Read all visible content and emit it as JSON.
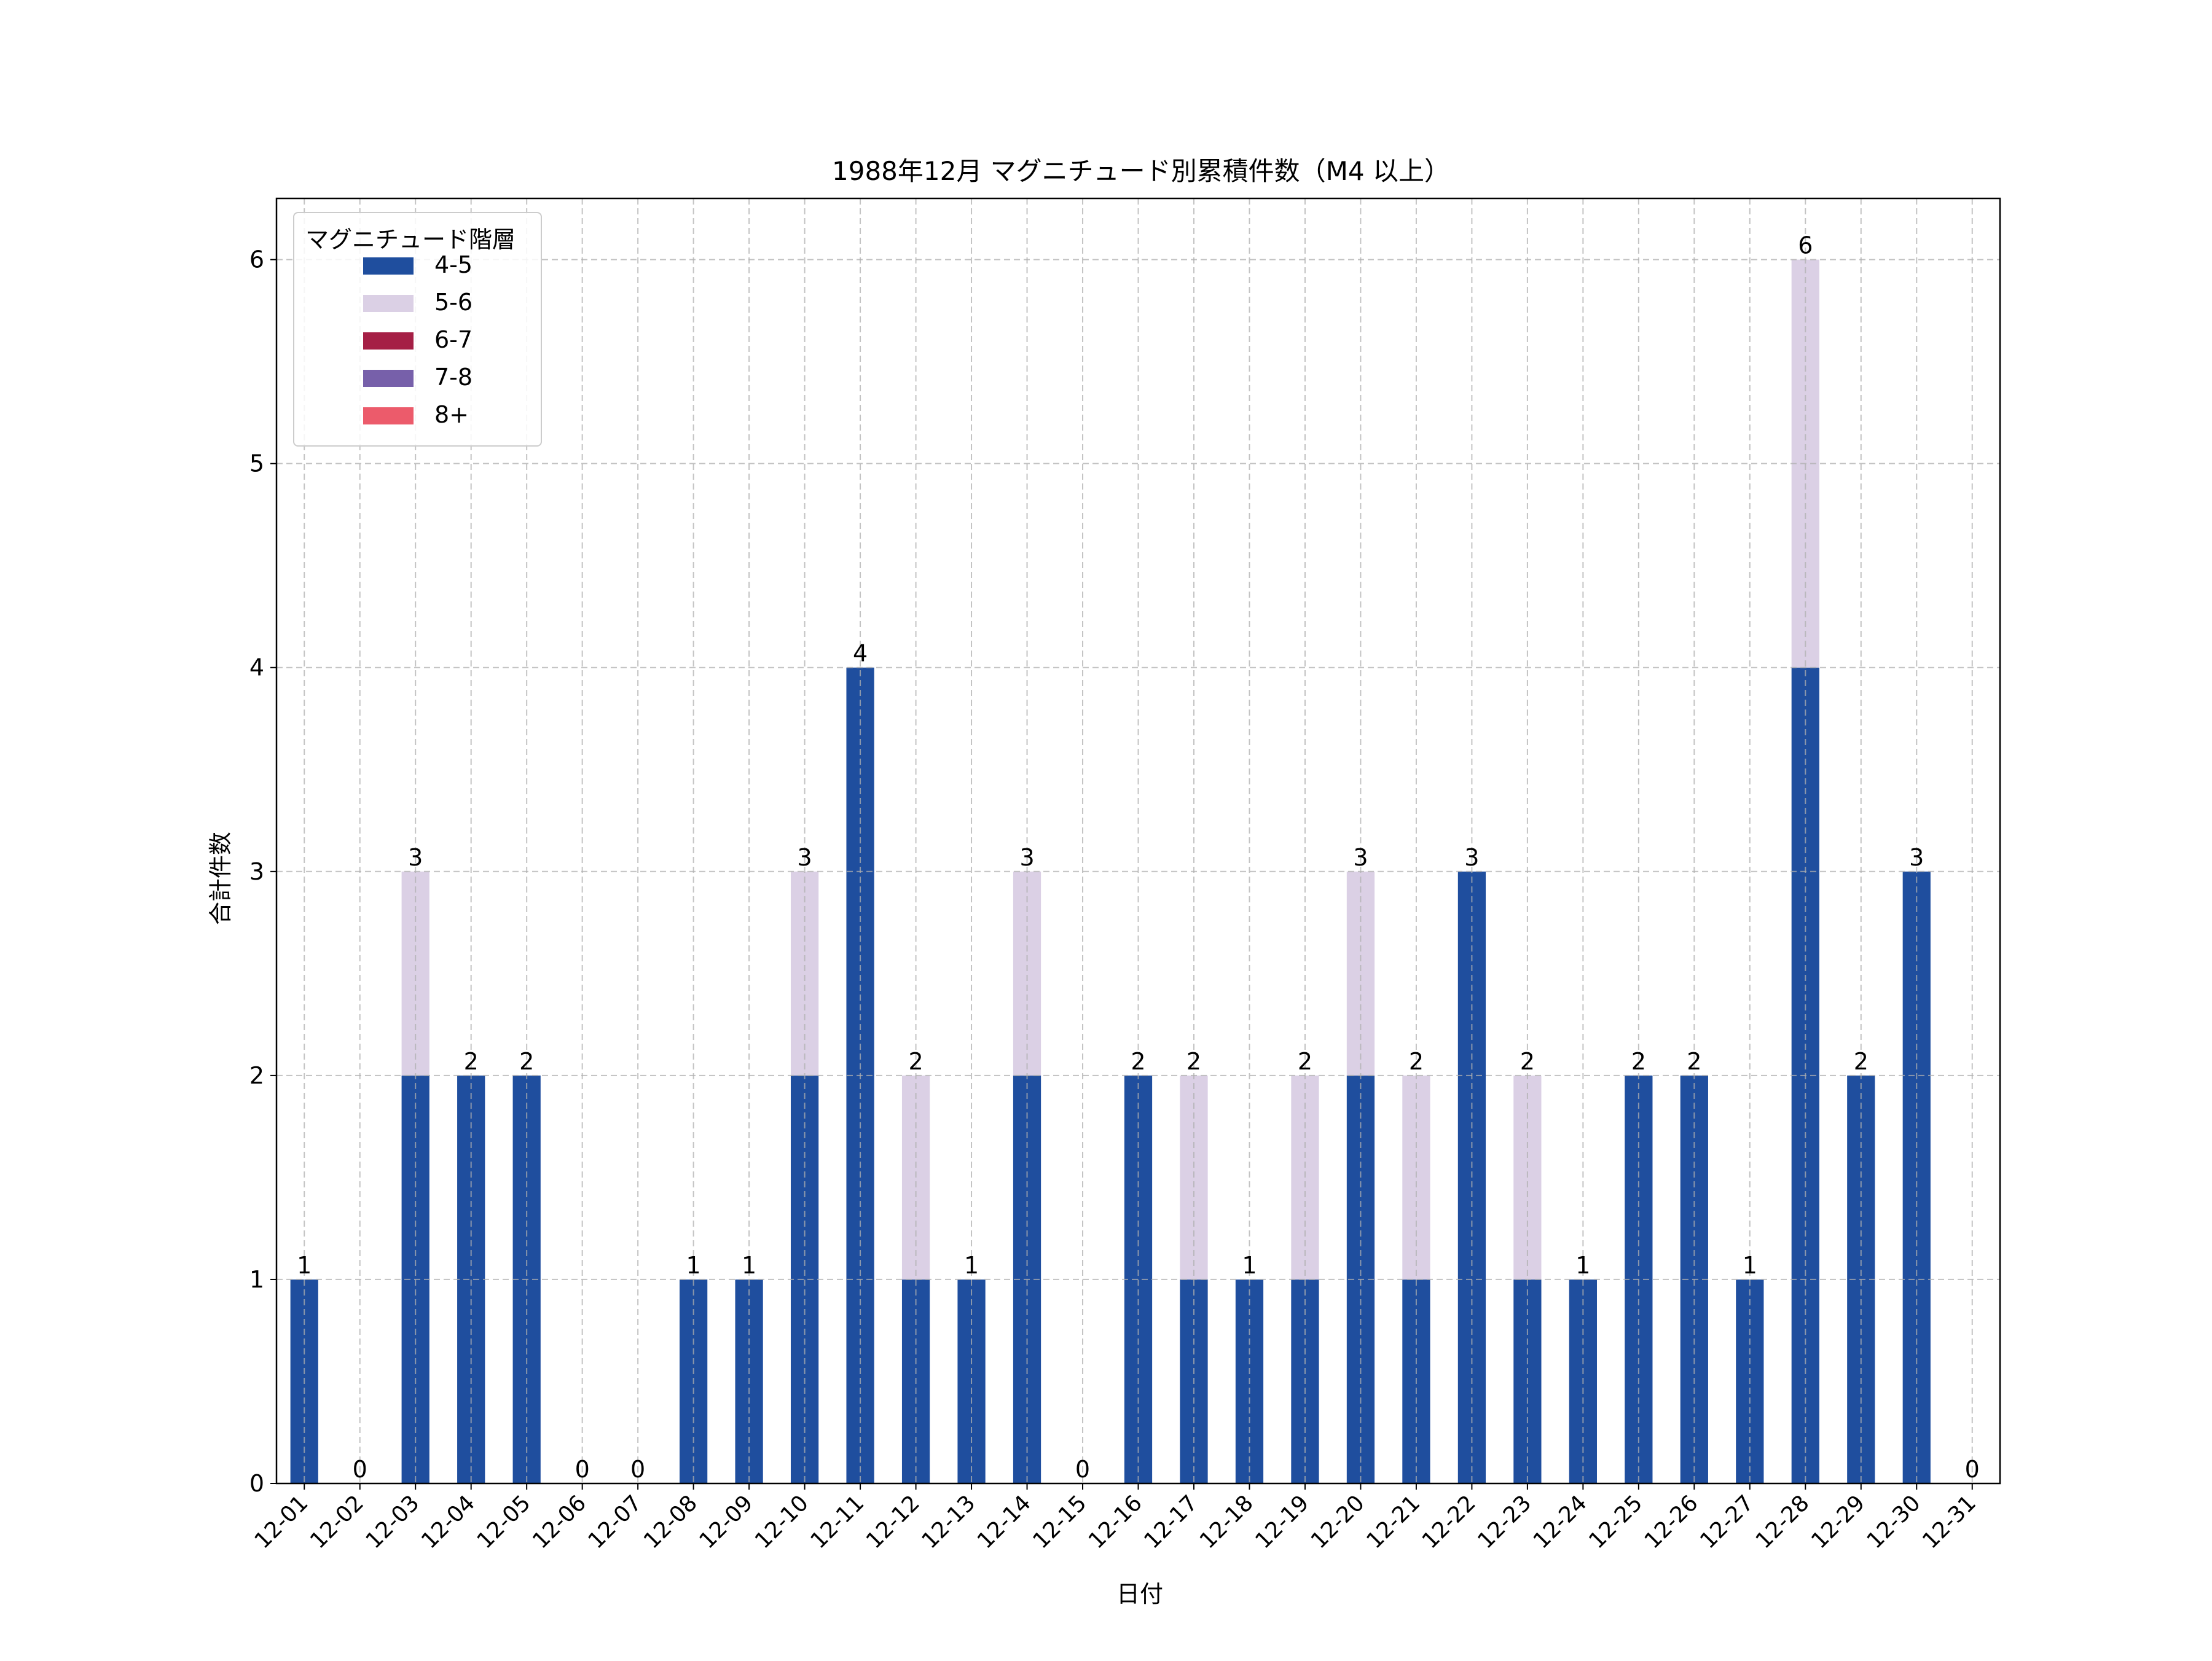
{
  "chart_data": {
    "type": "bar",
    "stacked": true,
    "title": "1988年12月 マグニチュード別累積件数（M4 以上）",
    "xlabel": "日付",
    "ylabel": "合計件数",
    "ylim": [
      0,
      6.3
    ],
    "yticks": [
      0,
      1,
      2,
      3,
      4,
      5,
      6
    ],
    "grid": true,
    "legend": {
      "title": "マグニチュード階層",
      "position": "top-left"
    },
    "categories": [
      "12-01",
      "12-02",
      "12-03",
      "12-04",
      "12-05",
      "12-06",
      "12-07",
      "12-08",
      "12-09",
      "12-10",
      "12-11",
      "12-12",
      "12-13",
      "12-14",
      "12-15",
      "12-16",
      "12-17",
      "12-18",
      "12-19",
      "12-20",
      "12-21",
      "12-22",
      "12-23",
      "12-24",
      "12-25",
      "12-26",
      "12-27",
      "12-28",
      "12-29",
      "12-30",
      "12-31"
    ],
    "series": [
      {
        "name": "4-5",
        "color": "#1f4e9e",
        "values": [
          1,
          0,
          2,
          2,
          2,
          0,
          0,
          1,
          1,
          2,
          4,
          1,
          1,
          2,
          0,
          2,
          1,
          1,
          1,
          2,
          1,
          3,
          1,
          1,
          2,
          2,
          1,
          4,
          2,
          3,
          0
        ]
      },
      {
        "name": "5-6",
        "color": "#dbd0e5",
        "values": [
          0,
          0,
          1,
          0,
          0,
          0,
          0,
          0,
          0,
          1,
          0,
          1,
          0,
          1,
          0,
          0,
          1,
          0,
          1,
          1,
          1,
          0,
          1,
          0,
          0,
          0,
          0,
          2,
          0,
          0,
          0
        ]
      },
      {
        "name": "6-7",
        "color": "#a51f45",
        "values": [
          0,
          0,
          0,
          0,
          0,
          0,
          0,
          0,
          0,
          0,
          0,
          0,
          0,
          0,
          0,
          0,
          0,
          0,
          0,
          0,
          0,
          0,
          0,
          0,
          0,
          0,
          0,
          0,
          0,
          0,
          0
        ]
      },
      {
        "name": "7-8",
        "color": "#7760aa",
        "values": [
          0,
          0,
          0,
          0,
          0,
          0,
          0,
          0,
          0,
          0,
          0,
          0,
          0,
          0,
          0,
          0,
          0,
          0,
          0,
          0,
          0,
          0,
          0,
          0,
          0,
          0,
          0,
          0,
          0,
          0,
          0
        ]
      },
      {
        "name": "8+",
        "color": "#ec5b6b",
        "values": [
          0,
          0,
          0,
          0,
          0,
          0,
          0,
          0,
          0,
          0,
          0,
          0,
          0,
          0,
          0,
          0,
          0,
          0,
          0,
          0,
          0,
          0,
          0,
          0,
          0,
          0,
          0,
          0,
          0,
          0,
          0
        ]
      }
    ],
    "totals": [
      1,
      0,
      3,
      2,
      2,
      0,
      0,
      1,
      1,
      3,
      4,
      2,
      1,
      3,
      0,
      2,
      2,
      1,
      2,
      3,
      2,
      3,
      2,
      1,
      2,
      2,
      1,
      6,
      2,
      3,
      0
    ]
  }
}
